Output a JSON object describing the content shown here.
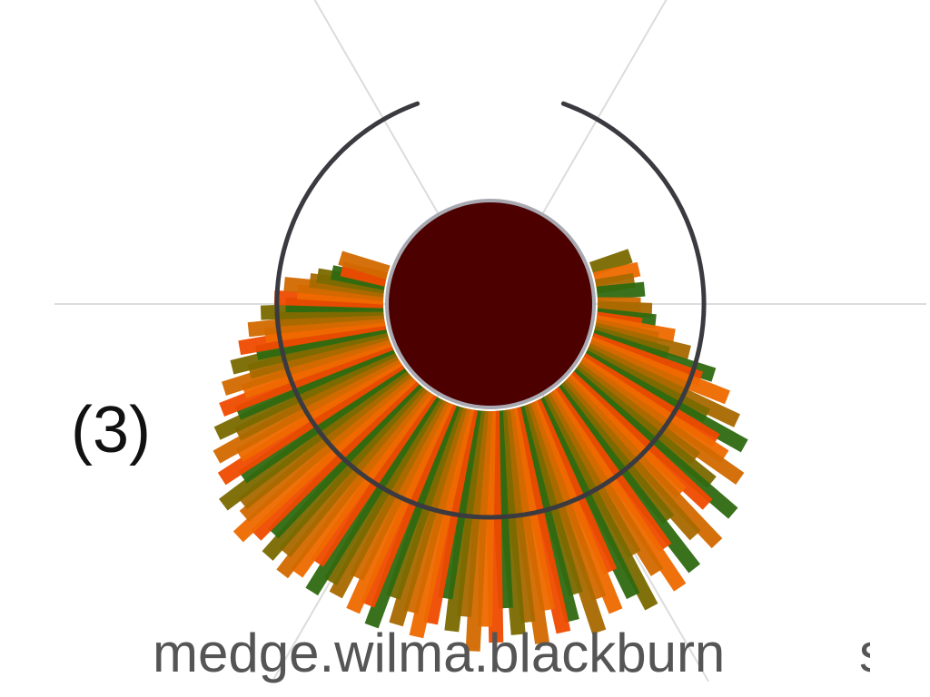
{
  "panel": {
    "label": "(3)"
  },
  "user": {
    "name": "medge.wilma.blackburn",
    "next_partial": "s"
  },
  "colors": {
    "core": "#4d0000",
    "core_ring": "#a8a8b0",
    "arc": "#3a3a40",
    "spoke": "#dcdcdc",
    "bar_palette": [
      "#ef6a00",
      "#d26a00",
      "#a86a00",
      "#7b6a00",
      "#2f6a10",
      "#f04a00"
    ]
  },
  "chart_data": {
    "type": "radial-bar",
    "title": "",
    "start_angle_deg": -20,
    "end_angle_deg": 200,
    "series": [
      {
        "values": [
          0.1,
          0.0,
          0.0,
          0.12,
          0.0,
          0.09,
          0.0,
          0.13,
          0.0,
          0.0,
          0.11,
          0.16,
          0.0,
          0.18,
          0.12,
          0.27,
          0.2,
          0.35,
          0.26,
          0.48,
          0.43,
          0.57,
          0.4,
          0.65,
          0.52,
          0.73,
          0.61,
          0.68,
          0.79,
          0.58,
          0.7,
          0.86,
          0.75,
          0.63,
          0.9,
          0.81,
          0.68,
          0.92,
          0.77,
          0.95,
          0.84,
          0.72,
          0.96,
          0.88,
          0.74,
          0.91,
          0.83,
          0.97,
          0.78,
          0.89,
          0.93,
          0.82,
          0.96,
          0.86,
          0.91,
          0.79,
          0.94,
          0.87,
          0.98,
          0.83,
          0.9,
          0.76,
          0.88,
          0.95,
          0.85,
          0.92,
          0.81,
          0.96,
          0.88,
          0.93,
          0.79,
          0.9,
          0.86,
          0.94,
          0.82,
          0.91,
          0.95,
          0.87,
          0.93,
          0.84,
          0.9,
          0.96,
          0.88,
          0.85,
          0.92,
          0.78,
          0.86,
          0.74,
          0.83,
          0.7,
          0.78,
          0.66,
          0.72,
          0.6,
          0.68,
          0.55,
          0.62,
          0.5,
          0.57,
          0.45,
          0.52,
          0.4,
          0.46,
          0.35,
          0.4,
          0.3,
          0.36,
          0.25,
          0.22,
          0.16,
          0.12,
          0.0,
          0.14,
          0.0
        ]
      }
    ]
  }
}
